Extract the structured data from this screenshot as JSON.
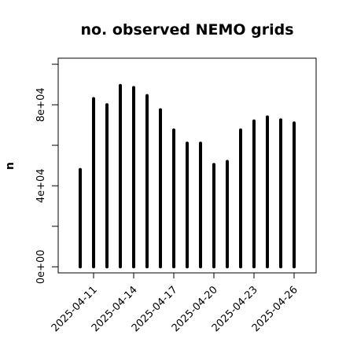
{
  "chart_data": {
    "type": "bar",
    "title": "no. observed NEMO grids",
    "xlabel": "",
    "ylabel": "n",
    "x": [
      "2025-04-10",
      "2025-04-11",
      "2025-04-12",
      "2025-04-13",
      "2025-04-14",
      "2025-04-15",
      "2025-04-16",
      "2025-04-17",
      "2025-04-18",
      "2025-04-19",
      "2025-04-20",
      "2025-04-21",
      "2025-04-22",
      "2025-04-23",
      "2025-04-24",
      "2025-04-25",
      "2025-04-26"
    ],
    "values": [
      48000,
      83000,
      80000,
      89500,
      88500,
      84500,
      77500,
      67500,
      61000,
      61000,
      50500,
      52000,
      67500,
      72000,
      74000,
      72500,
      71000
    ],
    "xticks": [
      "2025-04-11",
      "2025-04-14",
      "2025-04-17",
      "2025-04-20",
      "2025-04-23",
      "2025-04-26"
    ],
    "yticks": [
      0,
      40000,
      80000
    ],
    "ytick_labels": [
      "0e+00",
      "4e+04",
      "8e+04"
    ],
    "ylim": [
      -3000,
      103000
    ],
    "grid": false,
    "bar_color": "#000000"
  }
}
